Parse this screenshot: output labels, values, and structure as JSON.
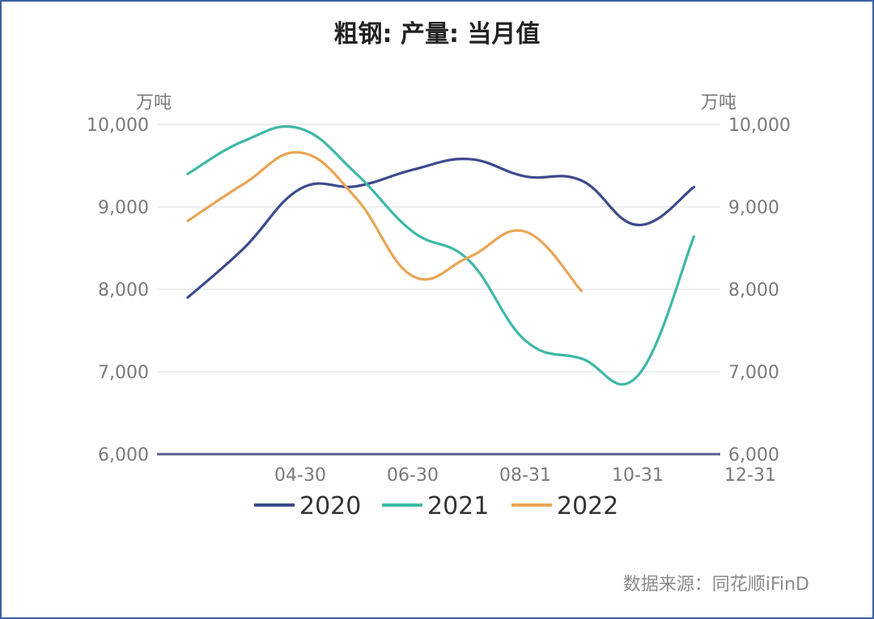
{
  "chart_data": {
    "type": "line",
    "title": "粗钢: 产量: 当月值",
    "y_unit_left": "万吨",
    "y_unit_right": "万吨",
    "x_tick_labels": [
      "04-30",
      "06-30",
      "08-31",
      "10-31",
      "12-31"
    ],
    "x_months": [
      2,
      3,
      4,
      5,
      6,
      7,
      8,
      9,
      10,
      11,
      12
    ],
    "y_ticks": [
      "10,000",
      "9,000",
      "8,000",
      "7,000",
      "6,000"
    ],
    "y_tick_values": [
      10000,
      9000,
      8000,
      7000,
      6000
    ],
    "ylim": [
      6000,
      10000
    ],
    "grid": true,
    "legend_position": "bottom",
    "series": [
      {
        "name": "2020",
        "color": "#3c4a8c",
        "values": [
          7900,
          8500,
          9220,
          9250,
          9450,
          9580,
          9370,
          9320,
          8780,
          9240
        ]
      },
      {
        "name": "2021",
        "color": "#3fb8a6",
        "values": [
          9400,
          9800,
          9950,
          9400,
          8700,
          8350,
          7380,
          7160,
          6950,
          8640
        ]
      },
      {
        "name": "2022",
        "color": "#e9a556",
        "values": [
          8830,
          9280,
          9660,
          9100,
          8160,
          8390,
          8700,
          7980
        ]
      }
    ]
  },
  "source_label": "数据来源：同花顺iFinD"
}
